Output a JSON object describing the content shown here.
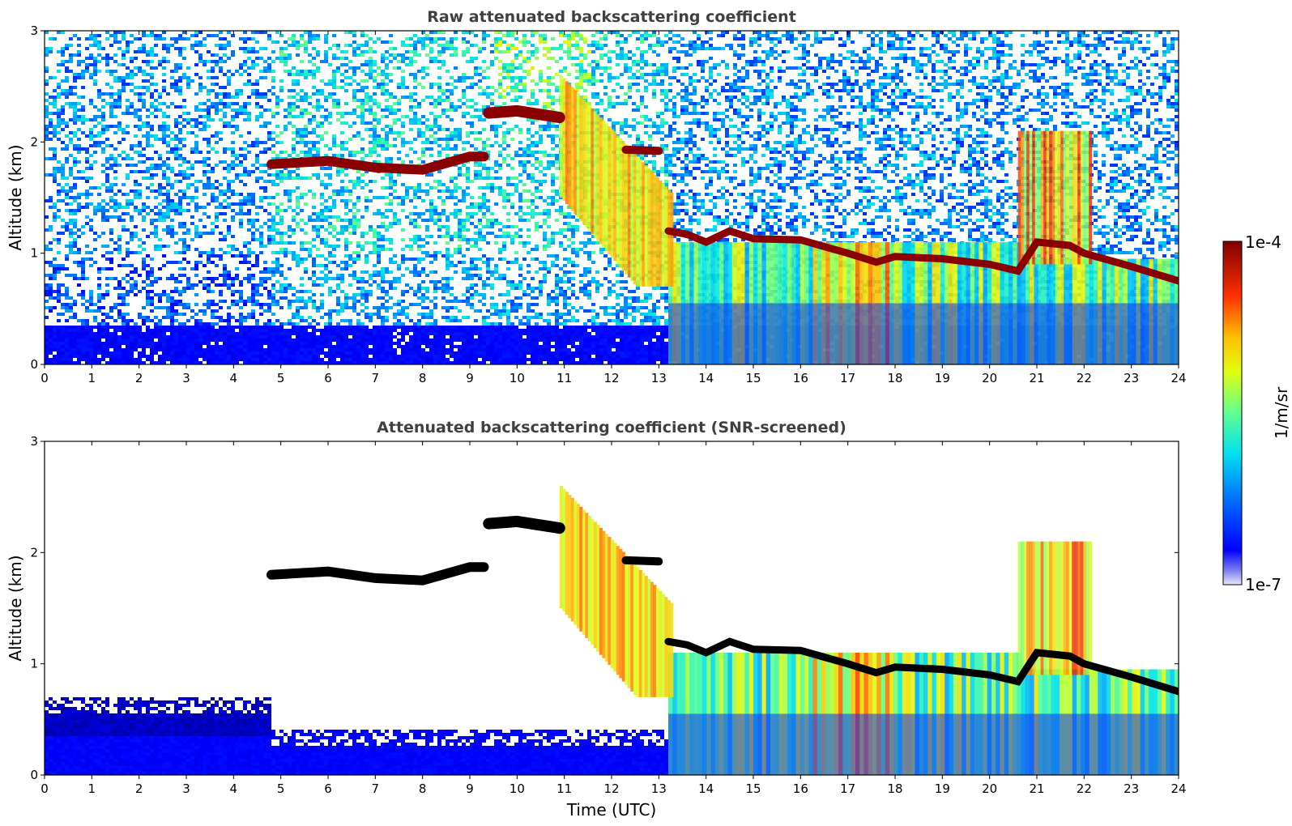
{
  "chart_data": [
    {
      "type": "heatmap",
      "title": "Raw attenuated backscattering coefficient",
      "xlabel": "",
      "ylabel": "Altitude (km)",
      "xlim": [
        0,
        24
      ],
      "ylim": [
        0,
        3
      ],
      "xticks": [
        "0",
        "1",
        "2",
        "3",
        "4",
        "5",
        "6",
        "7",
        "8",
        "9",
        "10",
        "11",
        "12",
        "13",
        "14",
        "15",
        "16",
        "17",
        "18",
        "19",
        "20",
        "21",
        "22",
        "23",
        "24"
      ],
      "yticks": [
        "0",
        "1",
        "2",
        "3"
      ],
      "screened": false
    },
    {
      "type": "heatmap",
      "title": "Attenuated backscattering coefficient (SNR-screened)",
      "xlabel": "Time (UTC)",
      "ylabel": "Altitude (km)",
      "xlim": [
        0,
        24
      ],
      "ylim": [
        0,
        3
      ],
      "xticks": [
        "0",
        "1",
        "2",
        "3",
        "4",
        "5",
        "6",
        "7",
        "8",
        "9",
        "10",
        "11",
        "12",
        "13",
        "14",
        "15",
        "16",
        "17",
        "18",
        "19",
        "20",
        "21",
        "22",
        "23",
        "24"
      ],
      "yticks": [
        "0",
        "1",
        "2",
        "3"
      ],
      "screened": true
    }
  ],
  "colorbar": {
    "label": "1/m/sr",
    "max_label": "1e-4",
    "min_label": "1e-7",
    "colormap": "jet"
  },
  "cloud_layer": [
    [
      4.8,
      1.8
    ],
    [
      6.0,
      1.83
    ],
    [
      7.0,
      1.77
    ],
    [
      8.0,
      1.75
    ],
    [
      9.0,
      1.87
    ],
    [
      9.3,
      1.87
    ]
  ],
  "cloud_layer_2": [
    [
      9.4,
      2.26
    ],
    [
      10.0,
      2.28
    ],
    [
      10.9,
      2.22
    ]
  ],
  "cloud_layer_3": [
    [
      12.3,
      1.93
    ],
    [
      13.0,
      1.92
    ]
  ],
  "boundary_layer": [
    [
      13.2,
      1.2
    ],
    [
      13.6,
      1.17
    ],
    [
      14.0,
      1.1
    ],
    [
      14.5,
      1.2
    ],
    [
      15.0,
      1.13
    ],
    [
      16.0,
      1.12
    ],
    [
      17.0,
      1.0
    ],
    [
      17.6,
      0.92
    ],
    [
      18.0,
      0.97
    ],
    [
      19.0,
      0.95
    ],
    [
      20.0,
      0.9
    ],
    [
      20.6,
      0.84
    ],
    [
      21.0,
      1.1
    ],
    [
      21.7,
      1.07
    ],
    [
      22.0,
      1.0
    ],
    [
      23.0,
      0.88
    ],
    [
      24.0,
      0.75
    ]
  ]
}
